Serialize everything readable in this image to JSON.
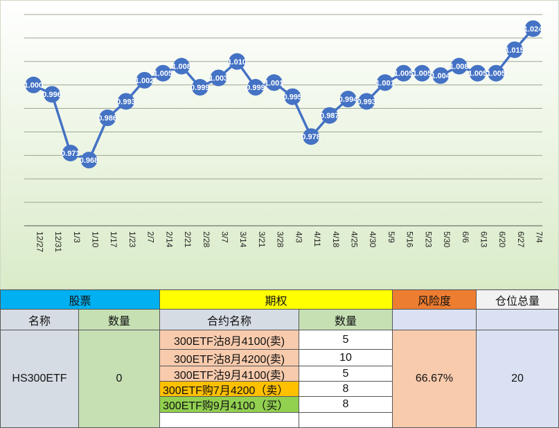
{
  "chart_data": {
    "type": "line",
    "x": [
      "12/27",
      "12/31",
      "1/3",
      "1/10",
      "1/17",
      "1/23",
      "2/7",
      "2/14",
      "2/21",
      "2/28",
      "3/7",
      "3/14",
      "3/21",
      "3/28",
      "4/3",
      "4/11",
      "4/18",
      "4/25",
      "4/30",
      "5/9",
      "5/16",
      "5/23",
      "5/30",
      "6/6",
      "6/13",
      "6/20",
      "6/27",
      "7/4"
    ],
    "series": [
      {
        "values": [
          1.0,
          0.996,
          0.971,
          0.968,
          0.986,
          0.993,
          1.002,
          1.005,
          1.008,
          0.999,
          1.003,
          1.01,
          0.999,
          1.001,
          0.995,
          0.978,
          0.987,
          0.994,
          0.993,
          1.001,
          1.005,
          1.005,
          1.004,
          1.008,
          1.005,
          1.005,
          1.015,
          1.024
        ]
      }
    ],
    "labels": [
      "1.000",
      "0.996",
      "0.971",
      "0.968",
      "0.986",
      "0.993",
      "1.002",
      "1.005",
      "1.008",
      "0.999",
      "1.003",
      "1.010",
      "0.999",
      "1.001",
      "0.995",
      "0.978",
      "0.987",
      "0.994",
      "0.993",
      "1.001",
      "1.005",
      "1.005",
      "1.004",
      "1.008",
      "1.005",
      "1.005",
      "1.015",
      "1.024"
    ],
    "ylim": [
      0.94,
      1.03
    ],
    "grid": true,
    "line_color": "#4472c4"
  },
  "table": {
    "group_headers": {
      "stock": "股票",
      "option": "期权",
      "risk": "风险度",
      "position": "仓位总量"
    },
    "sub_headers": {
      "name": "名称",
      "qty": "数量",
      "contract": "合约名称",
      "opt_qty": "数量"
    },
    "stock_name": "HS300ETF",
    "stock_qty": "0",
    "options": [
      {
        "name": "300ETF沽8月4100(卖)",
        "qty": "5"
      },
      {
        "name": "300ETF沽8月4200(卖)",
        "qty": "10"
      },
      {
        "name": "300ETF沽9月4100(卖)",
        "qty": "5"
      },
      {
        "name": "300ETF购7月4200（卖）",
        "qty": "8"
      },
      {
        "name": "300ETF购9月4100（买）",
        "qty": "8"
      },
      {
        "name": "",
        "qty": ""
      }
    ],
    "risk_value": "66.67%",
    "position_value": "20",
    "colors": {
      "stock_header": "#00b0f0",
      "option_header": "#ffff00",
      "risk_header": "#ed7d31",
      "position_header": "#f2f2f2",
      "subheader": "#d6dce4",
      "qty_green": "#c6e0b4",
      "option_peach": "#f8cbad",
      "option_orange": "#ffc000",
      "option_green": "#92d050",
      "risk_body": "#f8cbad",
      "position_body": "#d9e1f2",
      "blue_sub": "#d9e1f2"
    }
  }
}
